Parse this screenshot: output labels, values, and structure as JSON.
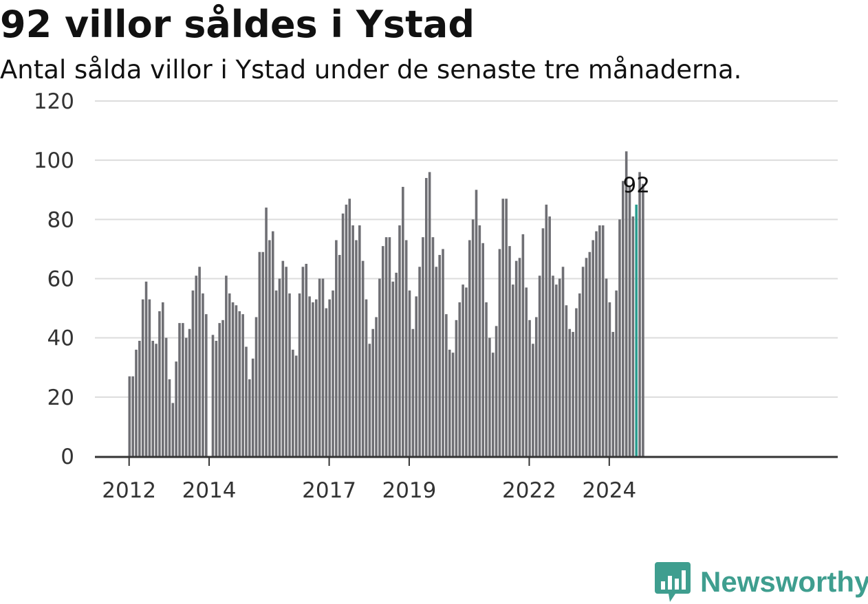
{
  "chart_data": {
    "type": "bar",
    "title": "92 villor såldes i Ystad",
    "subtitle": "Antal sålda villor i Ystad under de senaste tre månaderna.",
    "xlabel": "",
    "ylabel": "",
    "ylim": [
      0,
      120
    ],
    "yticks": [
      "0",
      "20",
      "40",
      "60",
      "80",
      "100",
      "120"
    ],
    "grid": true,
    "x_start": "2012-01",
    "x_end": "2024-09",
    "xticks": [
      {
        "label": "2012",
        "index": 0
      },
      {
        "label": "2014",
        "index": 24
      },
      {
        "label": "2017",
        "index": 60
      },
      {
        "label": "2019",
        "index": 84
      },
      {
        "label": "2022",
        "index": 120
      },
      {
        "label": "2024",
        "index": 144
      }
    ],
    "values": [
      27,
      27,
      36,
      39,
      53,
      59,
      53,
      39,
      38,
      49,
      52,
      40,
      26,
      18,
      32,
      45,
      45,
      40,
      43,
      56,
      61,
      64,
      55,
      48,
      0,
      41,
      39,
      45,
      46,
      61,
      55,
      52,
      51,
      49,
      48,
      37,
      26,
      33,
      47,
      69,
      69,
      84,
      73,
      76,
      56,
      60,
      66,
      64,
      55,
      36,
      34,
      55,
      64,
      65,
      54,
      52,
      53,
      60,
      60,
      50,
      53,
      56,
      73,
      68,
      82,
      85,
      87,
      78,
      73,
      78,
      66,
      53,
      38,
      43,
      47,
      60,
      71,
      74,
      74,
      59,
      62,
      78,
      91,
      73,
      56,
      43,
      54,
      64,
      74,
      94,
      96,
      74,
      64,
      68,
      70,
      48,
      36,
      35,
      46,
      52,
      58,
      57,
      73,
      80,
      90,
      78,
      72,
      52,
      40,
      35,
      44,
      70,
      87,
      87,
      71,
      58,
      66,
      67,
      75,
      57,
      46,
      38,
      47,
      61,
      77,
      85,
      81,
      61,
      58,
      60,
      64,
      51,
      43,
      42,
      50,
      55,
      64,
      67,
      69,
      73,
      76,
      78,
      78,
      60,
      52,
      42,
      56,
      80,
      93,
      103,
      91,
      81,
      85,
      96,
      92
    ],
    "highlight_index": 152,
    "highlight_label": "92",
    "bar_color": "#6f6f74",
    "highlight_color": "#2a9d8f"
  },
  "brand": {
    "name": "Newsworthy",
    "icon": "newsworthy-logo-icon",
    "color": "#3f9e8f"
  }
}
